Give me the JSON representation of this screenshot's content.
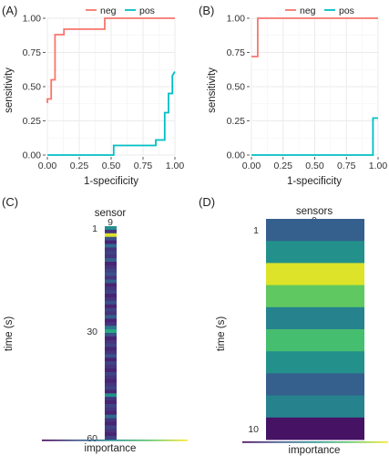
{
  "colors": {
    "neg": "#F8766D",
    "pos": "#00BFC4",
    "grid": "#EBEBEB",
    "axis": "#333333"
  },
  "chart_data": [
    {
      "panel": "(A)",
      "type": "line",
      "xlabel": "1-specificity",
      "ylabel": "sensitivity",
      "xlim": [
        0,
        1
      ],
      "ylim": [
        0,
        1
      ],
      "x_ticks": [
        "0.00",
        "0.25",
        "0.50",
        "0.75",
        "1.00"
      ],
      "y_ticks": [
        "0.00",
        "0.25",
        "0.50",
        "0.75",
        "1.00"
      ],
      "grid": true,
      "legend_position": "top",
      "series": [
        {
          "name": "neg",
          "color": "#F8766D",
          "x": [
            0.0,
            0.0,
            0.03,
            0.03,
            0.06,
            0.06,
            0.13,
            0.13,
            0.45,
            0.45,
            1.0
          ],
          "y": [
            0.38,
            0.41,
            0.41,
            0.55,
            0.55,
            0.88,
            0.88,
            0.92,
            0.92,
            1.0,
            1.0
          ]
        },
        {
          "name": "pos",
          "color": "#00BFC4",
          "x": [
            0.0,
            0.52,
            0.52,
            0.85,
            0.85,
            0.92,
            0.92,
            0.95,
            0.95,
            0.98,
            0.98,
            1.0
          ],
          "y": [
            0.0,
            0.0,
            0.07,
            0.07,
            0.11,
            0.11,
            0.31,
            0.31,
            0.45,
            0.45,
            0.58,
            0.61
          ]
        }
      ]
    },
    {
      "panel": "(B)",
      "type": "line",
      "xlabel": "1-specificity",
      "ylabel": "sensitivity",
      "xlim": [
        0,
        1
      ],
      "ylim": [
        0,
        1
      ],
      "x_ticks": [
        "0.00",
        "0.25",
        "0.50",
        "0.75",
        "1.00"
      ],
      "y_ticks": [
        "0.00",
        "0.25",
        "0.50",
        "0.75",
        "1.00"
      ],
      "grid": true,
      "legend_position": "top",
      "series": [
        {
          "name": "neg",
          "color": "#F8766D",
          "x": [
            0.0,
            0.05,
            0.05,
            1.0
          ],
          "y": [
            0.72,
            0.72,
            1.0,
            1.0
          ]
        },
        {
          "name": "pos",
          "color": "#00BFC4",
          "x": [
            0.0,
            0.96,
            0.96,
            1.0
          ],
          "y": [
            0.0,
            0.0,
            0.27,
            0.27
          ]
        }
      ]
    },
    {
      "panel": "(C)",
      "type": "heatmap",
      "title": "sensor",
      "column_label": "9",
      "ylabel": "time (s)",
      "y_ticks": [
        "1",
        "30",
        "60"
      ],
      "y_tick_rows": [
        1,
        30,
        60
      ],
      "xlabel": "importance",
      "rows": 60,
      "values": [
        0.5,
        0.15,
        0.95,
        0.25,
        0.1,
        0.35,
        0.15,
        0.2,
        0.15,
        0.3,
        0.1,
        0.15,
        0.2,
        0.25,
        0.15,
        0.3,
        0.1,
        0.15,
        0.2,
        0.1,
        0.15,
        0.25,
        0.1,
        0.2,
        0.15,
        0.3,
        0.1,
        0.15,
        0.4,
        0.6,
        0.25,
        0.1,
        0.15,
        0.2,
        0.1,
        0.15,
        0.25,
        0.1,
        0.2,
        0.15,
        0.1,
        0.2,
        0.15,
        0.1,
        0.15,
        0.2,
        0.1,
        0.5,
        0.15,
        0.1,
        0.2,
        0.15,
        0.1,
        0.35,
        0.15,
        0.1,
        0.2,
        0.15,
        0.1,
        0.2
      ]
    },
    {
      "panel": "(D)",
      "type": "heatmap",
      "title": "sensors",
      "column_label": "9",
      "ylabel": "time (s)",
      "y_ticks": [
        "1",
        "10"
      ],
      "y_tick_rows": [
        1,
        10
      ],
      "xlabel": "importance",
      "rows": 10,
      "values": [
        0.3,
        0.5,
        0.95,
        0.75,
        0.45,
        0.7,
        0.5,
        0.3,
        0.45,
        0.05
      ]
    }
  ]
}
